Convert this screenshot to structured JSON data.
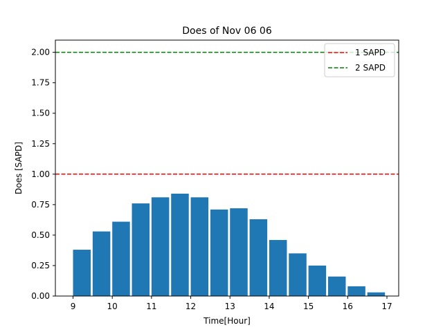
{
  "chart_data": {
    "type": "bar",
    "title": "Does of Nov 06 06",
    "xlabel": "Time[Hour]",
    "ylabel": "Does [SAPD]",
    "x": [
      9.0,
      9.5,
      10.0,
      10.5,
      11.0,
      11.5,
      12.0,
      12.5,
      13.0,
      13.5,
      14.0,
      14.5,
      15.0,
      15.5,
      16.0,
      16.5
    ],
    "values": [
      0.38,
      0.53,
      0.61,
      0.76,
      0.81,
      0.84,
      0.81,
      0.71,
      0.72,
      0.63,
      0.46,
      0.35,
      0.25,
      0.16,
      0.08,
      0.03
    ],
    "bar_width_hours": 0.45,
    "xlim": [
      8.55,
      17.3
    ],
    "ylim": [
      0,
      2.1
    ],
    "xticks": [
      9,
      10,
      11,
      12,
      13,
      14,
      15,
      16,
      17
    ],
    "yticks": [
      0.0,
      0.25,
      0.5,
      0.75,
      1.0,
      1.25,
      1.5,
      1.75,
      2.0
    ],
    "ytick_labels": [
      "0.00",
      "0.25",
      "0.50",
      "0.75",
      "1.00",
      "1.25",
      "1.50",
      "1.75",
      "2.00"
    ],
    "bar_color": "#1f77b4",
    "reference_lines": [
      {
        "name": "1 SAPD",
        "value": 1.0,
        "color": "#ff0000",
        "style": "dashed"
      },
      {
        "name": "2 SAPD",
        "value": 2.0,
        "color": "#008000",
        "style": "dashed"
      }
    ],
    "legend": {
      "placement": "top-right",
      "entries": [
        "1 SAPD",
        "2 SAPD"
      ]
    },
    "grid": false
  }
}
